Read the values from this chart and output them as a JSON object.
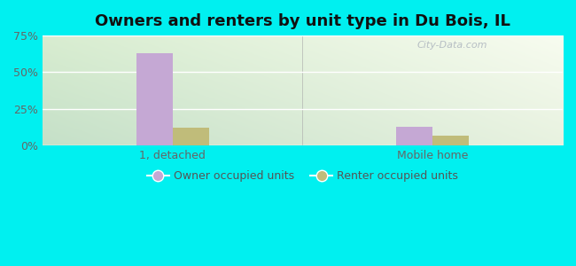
{
  "title": "Owners and renters by unit type in Du Bois, IL",
  "categories": [
    "1, detached",
    "Mobile home"
  ],
  "owner_values": [
    63.0,
    13.0
  ],
  "renter_values": [
    12.0,
    7.0
  ],
  "owner_color": "#c5a8d4",
  "renter_color": "#c0bc7a",
  "ylim": [
    0,
    75
  ],
  "yticks": [
    0,
    25,
    50,
    75
  ],
  "yticklabels": [
    "0%",
    "25%",
    "50%",
    "75%"
  ],
  "bar_width": 0.28,
  "group_positions": [
    1.0,
    3.0
  ],
  "xlim": [
    0,
    4
  ],
  "background_color": "#00f0f0",
  "legend_owner": "Owner occupied units",
  "legend_renter": "Renter occupied units",
  "watermark": "City-Data.com",
  "title_fontsize": 13,
  "tick_fontsize": 9,
  "legend_fontsize": 9,
  "grad_top_left": "#c5e0c8",
  "grad_top_right": "#e8f0e0",
  "grad_bottom_left": "#d8edd8",
  "grad_bottom_right": "#f5f8e8"
}
